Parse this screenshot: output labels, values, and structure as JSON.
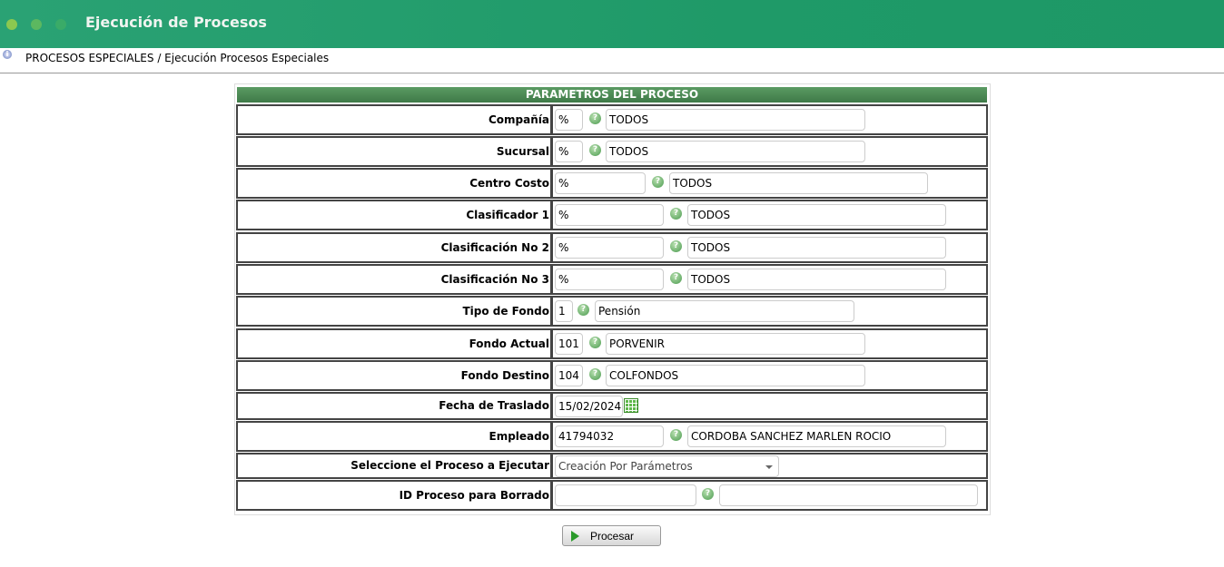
{
  "window": {
    "title": "Ejecución de Procesos"
  },
  "breadcrumb": "PROCESOS ESPECIALES / Ejecución Procesos Especiales",
  "form": {
    "header": "PARAMETROS DEL PROCESO",
    "rows": [
      {
        "label": "Compañía",
        "code": "%",
        "desc": "TODOS"
      },
      {
        "label": "Sucursal",
        "code": "%",
        "desc": "TODOS"
      },
      {
        "label": "Centro Costo",
        "code": "%",
        "desc": "TODOS"
      },
      {
        "label": "Clasificador 1",
        "code": "%",
        "desc": "TODOS"
      },
      {
        "label": "Clasificación No 2",
        "code": "%",
        "desc": "TODOS"
      },
      {
        "label": "Clasificación No 3",
        "code": "%",
        "desc": "TODOS"
      },
      {
        "label": "Tipo de Fondo",
        "code": "1",
        "desc": "Pensión"
      },
      {
        "label": "Fondo Actual",
        "code": "101",
        "desc": "PORVENIR"
      },
      {
        "label": "Fondo Destino",
        "code": "104",
        "desc": "COLFONDOS"
      },
      {
        "label": "Fecha de Traslado",
        "code": "15/02/2024"
      },
      {
        "label": "Empleado",
        "code": "41794032",
        "desc": "CORDOBA SANCHEZ MARLEN ROCIO"
      },
      {
        "label": "Seleccione el Proceso a Ejecutar",
        "code": "Creación Por Parámetros"
      },
      {
        "label": "ID Proceso para Borrado",
        "code": "",
        "desc": ""
      }
    ]
  },
  "submit_label": "Procesar",
  "icons": {
    "help": "help-icon",
    "calendar": "calendar-icon",
    "play": "play-icon"
  }
}
